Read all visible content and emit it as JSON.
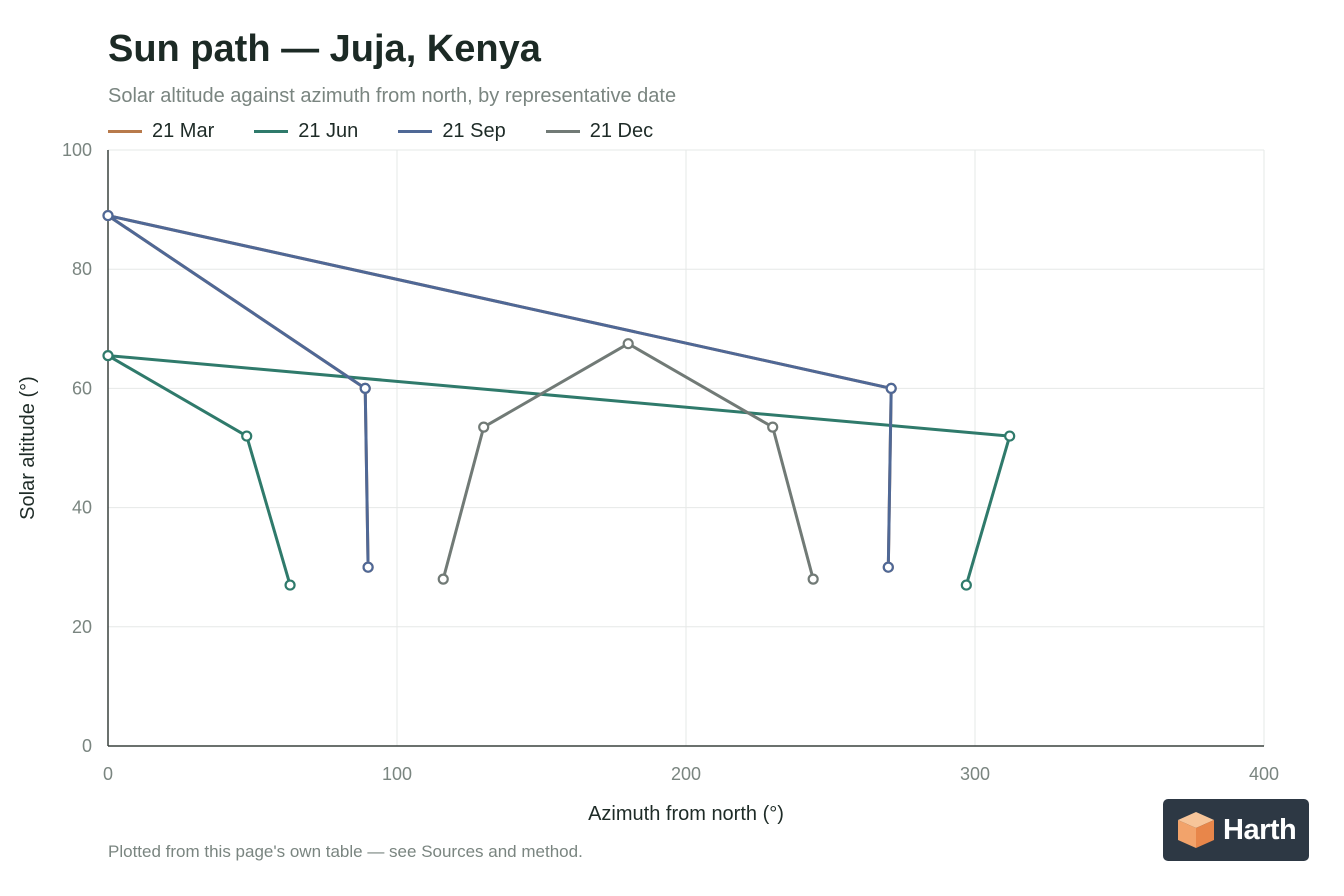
{
  "page": {
    "title": "Sun path — Juja, Kenya",
    "subtitle": "Solar altitude against azimuth from north, by representative date",
    "footer": "Plotted from this page's own table — see Sources and method.",
    "logo": "Harth"
  },
  "colors": {
    "mar": "#b87a4b",
    "jun": "#2f7a6b",
    "sep": "#4f6896",
    "dec": "#717a76",
    "grid": "#e6e8e7",
    "axis": "#3a423f",
    "tick_text": "#7a8580",
    "logo_bg": "#2d3844",
    "logo_orange": "#f2a36b"
  },
  "chart_data": {
    "type": "line",
    "xlabel": "Azimuth from north (°)",
    "ylabel": "Solar altitude (°)",
    "xlim": [
      0,
      400
    ],
    "ylim": [
      0,
      100
    ],
    "xticks": [
      "0",
      "100",
      "200",
      "300",
      "400"
    ],
    "yticks": [
      "0",
      "20",
      "40",
      "60",
      "80",
      "100"
    ],
    "grid": true,
    "legend_position": "top-left",
    "series": [
      {
        "name": "21 Mar",
        "color_key": "mar",
        "points": [
          [
            90,
            30
          ],
          [
            89,
            60
          ],
          [
            0,
            89
          ],
          [
            271,
            60
          ],
          [
            270,
            30
          ]
        ]
      },
      {
        "name": "21 Jun",
        "color_key": "jun",
        "points": [
          [
            63,
            27
          ],
          [
            48,
            52
          ],
          [
            0,
            65.5
          ],
          [
            312,
            52
          ],
          [
            297,
            27
          ]
        ]
      },
      {
        "name": "21 Sep",
        "color_key": "sep",
        "points": [
          [
            90,
            30
          ],
          [
            89,
            60
          ],
          [
            0,
            89
          ],
          [
            271,
            60
          ],
          [
            270,
            30
          ]
        ]
      },
      {
        "name": "21 Dec",
        "color_key": "dec",
        "points": [
          [
            116,
            28
          ],
          [
            130,
            53.5
          ],
          [
            180,
            67.5
          ],
          [
            230,
            53.5
          ],
          [
            244,
            28
          ]
        ]
      }
    ]
  }
}
